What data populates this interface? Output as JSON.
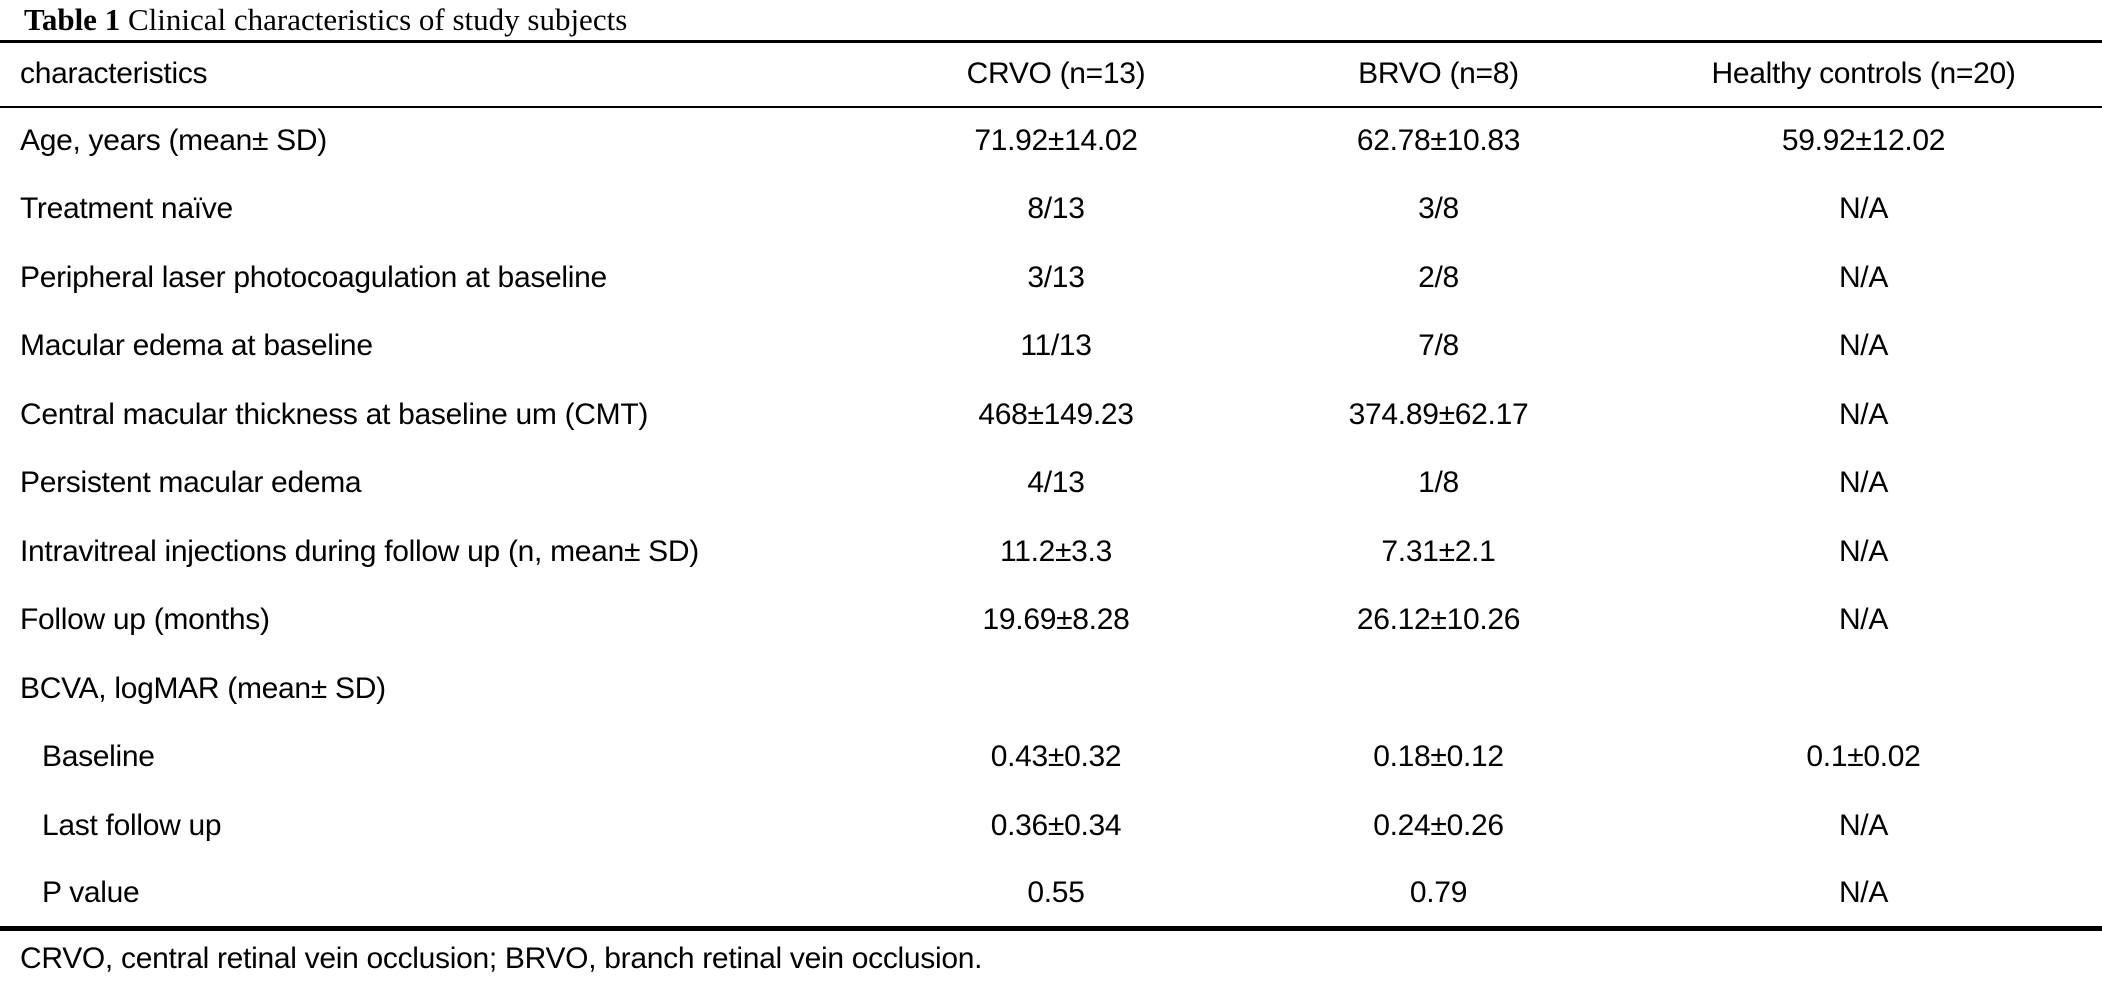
{
  "table": {
    "title_label": "Table 1",
    "title_text": "Clinical characteristics of study subjects",
    "columns": [
      "characteristics",
      "CRVO (n=13)",
      "BRVO (n=8)",
      "Healthy controls (n=20)"
    ],
    "rows": [
      {
        "label": "Age, years (mean± SD)",
        "indent": false,
        "values": [
          "71.92±14.02",
          "62.78±10.83",
          "59.92±12.02"
        ]
      },
      {
        "label": "Treatment naïve",
        "indent": false,
        "values": [
          "8/13",
          "3/8",
          "N/A"
        ]
      },
      {
        "label": "Peripheral laser photocoagulation at baseline",
        "indent": false,
        "values": [
          "3/13",
          "2/8",
          "N/A"
        ]
      },
      {
        "label": "Macular edema at baseline",
        "indent": false,
        "values": [
          "11/13",
          "7/8",
          "N/A"
        ]
      },
      {
        "label": "Central macular thickness at baseline um (CMT)",
        "indent": false,
        "values": [
          "468±149.23",
          "374.89±62.17",
          "N/A"
        ]
      },
      {
        "label": "Persistent macular edema",
        "indent": false,
        "values": [
          "4/13",
          "1/8",
          "N/A"
        ]
      },
      {
        "label": "Intravitreal injections during follow up (n, mean± SD)",
        "indent": false,
        "values": [
          "11.2±3.3",
          "7.31±2.1",
          "N/A"
        ]
      },
      {
        "label": "Follow up (months)",
        "indent": false,
        "values": [
          "19.69±8.28",
          "26.12±10.26",
          "N/A"
        ]
      },
      {
        "label": "BCVA, logMAR (mean± SD)",
        "indent": false,
        "values": [
          "",
          "",
          ""
        ]
      },
      {
        "label": "Baseline",
        "indent": true,
        "values": [
          "0.43±0.32",
          "0.18±0.12",
          "0.1±0.02"
        ]
      },
      {
        "label": "Last follow up",
        "indent": true,
        "values": [
          "0.36±0.34",
          "0.24±0.26",
          "N/A"
        ]
      },
      {
        "label": "P value",
        "indent": true,
        "values": [
          "0.55",
          "0.79",
          "N/A"
        ]
      }
    ],
    "footnote": "CRVO, central retinal vein occlusion; BRVO, branch retinal vein occlusion.",
    "colors": {
      "text": "#000000",
      "background": "#ffffff",
      "rule": "#000000"
    }
  },
  "chart_data": {
    "type": "table",
    "title": "Table 1 Clinical characteristics of study subjects",
    "columns": [
      "characteristics",
      "CRVO (n=13)",
      "BRVO (n=8)",
      "Healthy controls (n=20)"
    ],
    "rows": [
      [
        "Age, years (mean± SD)",
        "71.92±14.02",
        "62.78±10.83",
        "59.92±12.02"
      ],
      [
        "Treatment naïve",
        "8/13",
        "3/8",
        "N/A"
      ],
      [
        "Peripheral laser photocoagulation at baseline",
        "3/13",
        "2/8",
        "N/A"
      ],
      [
        "Macular edema at baseline",
        "11/13",
        "7/8",
        "N/A"
      ],
      [
        "Central macular thickness at baseline um (CMT)",
        "468±149.23",
        "374.89±62.17",
        "N/A"
      ],
      [
        "Persistent macular edema",
        "4/13",
        "1/8",
        "N/A"
      ],
      [
        "Intravitreal injections during follow up (n, mean± SD)",
        "11.2±3.3",
        "7.31±2.1",
        "N/A"
      ],
      [
        "Follow up (months)",
        "19.69±8.28",
        "26.12±10.26",
        "N/A"
      ],
      [
        "BCVA, logMAR (mean± SD)",
        "",
        "",
        ""
      ],
      [
        "Baseline",
        "0.43±0.32",
        "0.18±0.12",
        "0.1±0.02"
      ],
      [
        "Last follow up",
        "0.36±0.34",
        "0.24±0.26",
        "N/A"
      ],
      [
        "P value",
        "0.55",
        "0.79",
        "N/A"
      ]
    ],
    "footnote": "CRVO, central retinal vein occlusion; BRVO, branch retinal vein occlusion."
  }
}
